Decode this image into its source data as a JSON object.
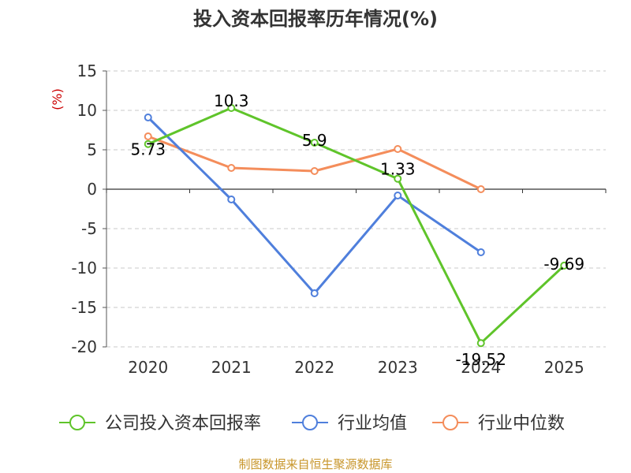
{
  "chart_data": {
    "type": "line",
    "title": "投入资本回报率历年情况(%)",
    "ylabel": "(%)",
    "categories": [
      "2020",
      "2021",
      "2022",
      "2023",
      "2024",
      "2025"
    ],
    "yticks": [
      "15",
      "10",
      "5",
      "0",
      "-5",
      "-10",
      "-15",
      "-20"
    ],
    "ylim": [
      -20,
      15
    ],
    "grid": true,
    "legend_position": "bottom",
    "series": [
      {
        "name": "公司投入资本回报率",
        "color": "#5fc42a",
        "values": [
          5.73,
          10.3,
          5.9,
          1.33,
          -19.52,
          -9.69
        ],
        "labels": [
          "5.73",
          "10.3",
          "5.9",
          "1.33",
          "-19.52",
          "-9.69"
        ]
      },
      {
        "name": "行业均值",
        "color": "#4f7fdc",
        "values": [
          9.1,
          -1.3,
          -13.2,
          -0.8,
          -8.0,
          null
        ]
      },
      {
        "name": "行业中位数",
        "color": "#f48d5b",
        "values": [
          6.7,
          2.7,
          2.3,
          5.1,
          0.0,
          null
        ]
      }
    ]
  },
  "footer": {
    "source": "制图数据来自恒生聚源数据库"
  }
}
